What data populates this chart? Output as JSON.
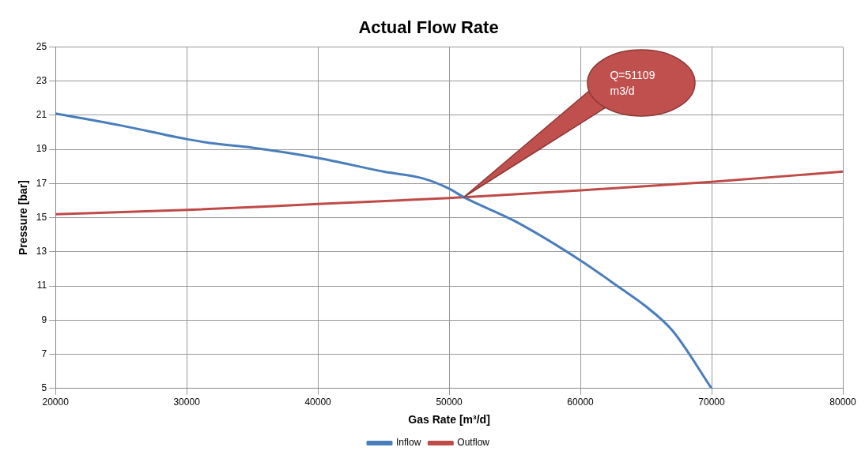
{
  "chart_data": {
    "type": "line",
    "title": "Actual Flow Rate",
    "xlabel": "Gas Rate [m³/d]",
    "ylabel": "Pressure [bar]",
    "xlim": [
      20000,
      80000
    ],
    "xticks": [
      20000,
      30000,
      40000,
      50000,
      60000,
      70000,
      80000
    ],
    "ylim": [
      5,
      25
    ],
    "yticks": [
      5,
      7,
      9,
      11,
      13,
      15,
      17,
      19,
      21,
      23,
      25
    ],
    "grid": true,
    "legend": "bottom",
    "marker": "none",
    "line_style": "solid",
    "annotations": [
      "Q=51109 m3/d"
    ],
    "series": [
      {
        "name": "Inflow",
        "color": "#4a7ebb",
        "x": [
          20000,
          25000,
          30000,
          32000,
          35000,
          40000,
          45000,
          48000,
          50000,
          51109,
          55000,
          60000,
          63000,
          65000,
          67000,
          70000
        ],
        "values": [
          21.1,
          20.4,
          19.6,
          19.35,
          19.1,
          18.5,
          17.7,
          17.3,
          16.7,
          16.2,
          14.8,
          12.5,
          10.9,
          9.8,
          8.4,
          5.0
        ]
      },
      {
        "name": "Outflow",
        "color": "#be4b48",
        "x": [
          20000,
          30000,
          40000,
          50000,
          51109,
          60000,
          70000,
          80000
        ],
        "values": [
          15.2,
          15.45,
          15.8,
          16.15,
          16.2,
          16.6,
          17.1,
          17.7
        ]
      }
    ]
  }
}
